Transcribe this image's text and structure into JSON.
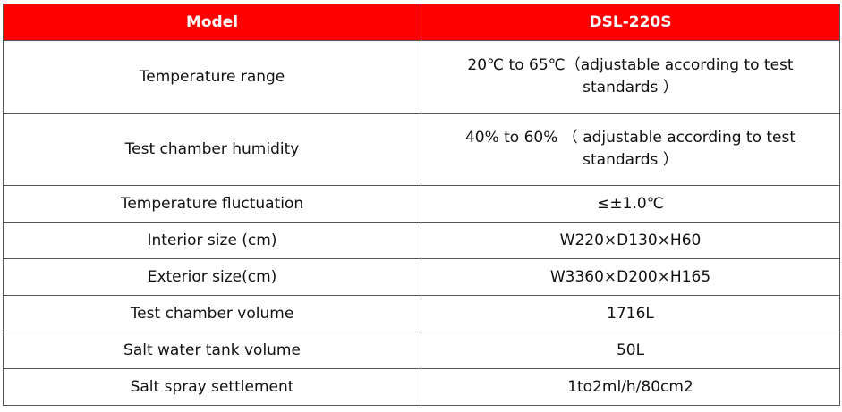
{
  "table": {
    "header": [
      "Model",
      "DSL-220S"
    ],
    "rows": [
      [
        "Temperature range",
        "20℃ to 65℃（adjustable according to test standards ）"
      ],
      [
        "Test chamber humidity",
        "40% to 60% （ adjustable according to test standards ）"
      ],
      [
        "Temperature fluctuation",
        "≤±1.0℃"
      ],
      [
        "Interior size (cm)",
        "W220×D130×H60"
      ],
      [
        "Exterior size(cm)",
        "W3360×D200×H165"
      ],
      [
        "Test chamber volume",
        "1716L"
      ],
      [
        "Salt water tank volume",
        "50L"
      ],
      [
        "Salt spray settlement",
        "1to2ml/h/80cm2"
      ]
    ]
  }
}
